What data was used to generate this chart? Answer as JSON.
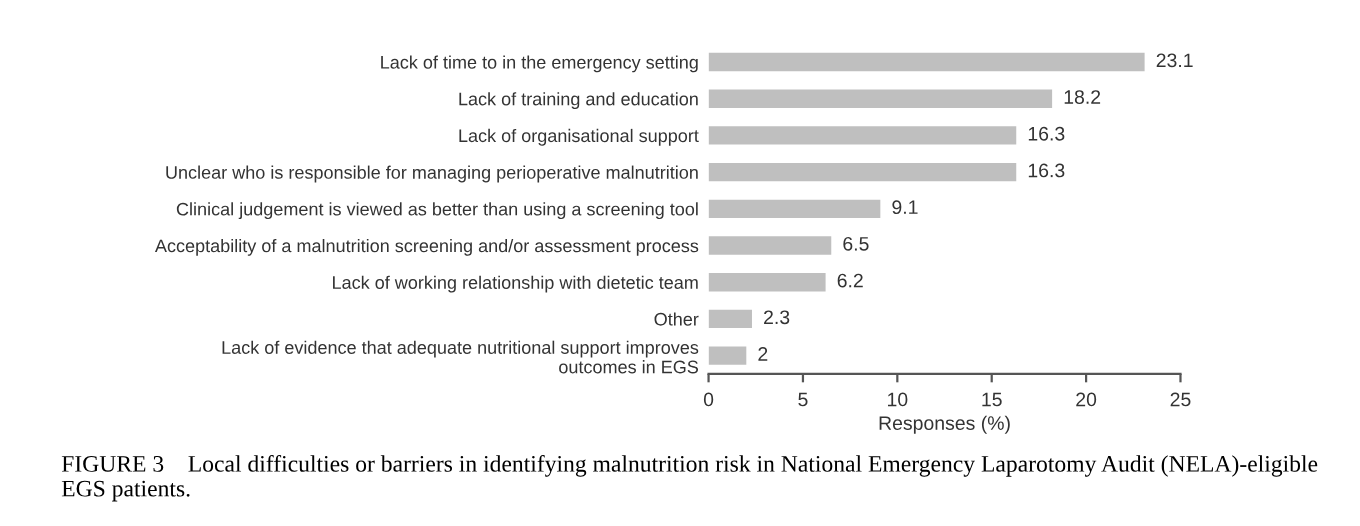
{
  "chart_data": {
    "type": "bar",
    "orientation": "horizontal",
    "categories": [
      "Lack of time to in the emergency setting",
      "Lack of training and education",
      "Lack of organisational support",
      "Unclear who is responsible for managing perioperative malnutrition",
      "Clinical judgement is viewed as better than using a screening tool",
      "Acceptability of a malnutrition screening and/or assessment process",
      "Lack of working relationship with dietetic team",
      "Other",
      "Lack of evidence that adequate nutritional support improves\noutcomes in EGS"
    ],
    "values": [
      23.1,
      18.2,
      16.3,
      16.3,
      9.1,
      6.5,
      6.2,
      2.3,
      2
    ],
    "color": "#bfbfbf",
    "xlabel": "Responses (%)",
    "xlim": [
      0,
      25
    ],
    "xticks": [
      0,
      5,
      10,
      15,
      20,
      25
    ],
    "data_labels": true,
    "grid": false,
    "legend": false,
    "annotations": [
      "FIGURE 3    Local difficulties or barriers in identifying malnutrition risk in National Emergency Laparotomy Audit (NELA)-eligible EGS patients."
    ]
  }
}
